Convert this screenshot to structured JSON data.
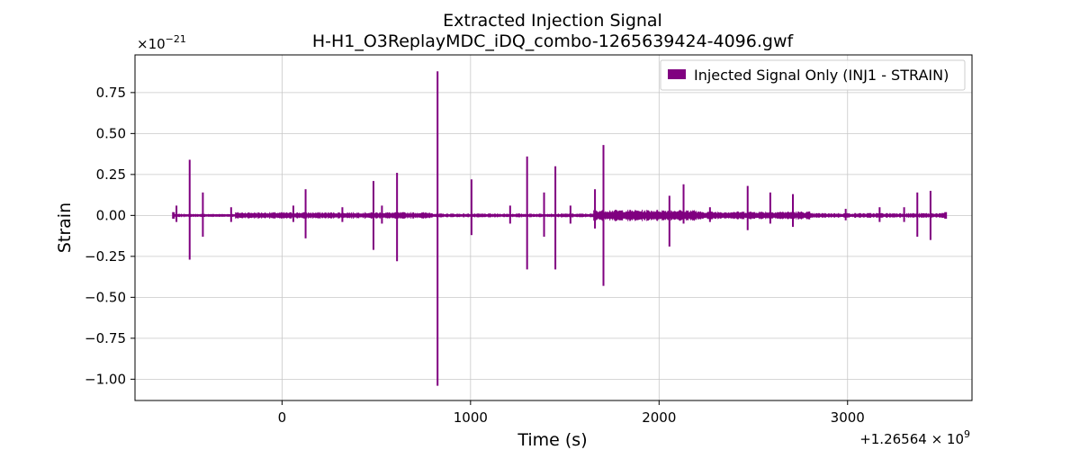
{
  "chart_data": {
    "type": "line",
    "title": "Extracted Injection Signal",
    "subtitle": "H-H1_O3ReplayMDC_iDQ_combo-1265639424-4096.gwf",
    "xlabel": "Time (s)",
    "ylabel": "Strain",
    "x_offset_label": "+1.26564",
    "x_offset_exp": "9",
    "y_scale_label": "×10",
    "y_scale_exp": "−21",
    "xlim": [
      -780,
      3660
    ],
    "ylim": [
      -1.13,
      0.98
    ],
    "xticks": [
      0,
      1000,
      2000,
      3000
    ],
    "xtick_labels": [
      "0",
      "1000",
      "2000",
      "3000"
    ],
    "yticks": [
      0.75,
      0.5,
      0.25,
      0.0,
      -0.25,
      -0.5,
      -0.75,
      -1.0
    ],
    "ytick_labels": [
      "0.75",
      "0.50",
      "0.25",
      "0.00",
      "−0.25",
      "−0.50",
      "−0.75",
      "−1.00"
    ],
    "grid": true,
    "legend_position": "top-right",
    "series": [
      {
        "name": "Injected Signal Only (INJ1 - STRAIN)",
        "color": "#800080",
        "x_range": [
          -576,
          3520
        ],
        "noise_segments": [
          {
            "x": [
              -576,
              -250
            ],
            "amp": 0.01
          },
          {
            "x": [
              -250,
              800
            ],
            "amp": 0.02
          },
          {
            "x": [
              800,
              1650
            ],
            "amp": 0.012
          },
          {
            "x": [
              1650,
              2200
            ],
            "amp": 0.035
          },
          {
            "x": [
              2200,
              2800
            ],
            "amp": 0.025
          },
          {
            "x": [
              2800,
              3520
            ],
            "amp": 0.015
          }
        ],
        "spikes": [
          {
            "t": -560,
            "max": 0.06,
            "min": -0.04
          },
          {
            "t": -490,
            "max": 0.34,
            "min": -0.27
          },
          {
            "t": -420,
            "max": 0.14,
            "min": -0.13
          },
          {
            "t": -270,
            "max": 0.05,
            "min": -0.04
          },
          {
            "t": 60,
            "max": 0.06,
            "min": -0.04
          },
          {
            "t": 125,
            "max": 0.16,
            "min": -0.14
          },
          {
            "t": 320,
            "max": 0.05,
            "min": -0.04
          },
          {
            "t": 485,
            "max": 0.21,
            "min": -0.21
          },
          {
            "t": 530,
            "max": 0.06,
            "min": -0.05
          },
          {
            "t": 610,
            "max": 0.26,
            "min": -0.28
          },
          {
            "t": 825,
            "max": 0.88,
            "min": -1.04
          },
          {
            "t": 1005,
            "max": 0.22,
            "min": -0.12
          },
          {
            "t": 1210,
            "max": 0.06,
            "min": -0.05
          },
          {
            "t": 1300,
            "max": 0.36,
            "min": -0.33
          },
          {
            "t": 1390,
            "max": 0.14,
            "min": -0.13
          },
          {
            "t": 1450,
            "max": 0.3,
            "min": -0.33
          },
          {
            "t": 1530,
            "max": 0.06,
            "min": -0.05
          },
          {
            "t": 1660,
            "max": 0.16,
            "min": -0.08
          },
          {
            "t": 1705,
            "max": 0.43,
            "min": -0.43
          },
          {
            "t": 2055,
            "max": 0.12,
            "min": -0.19
          },
          {
            "t": 2130,
            "max": 0.19,
            "min": -0.05
          },
          {
            "t": 2270,
            "max": 0.05,
            "min": -0.04
          },
          {
            "t": 2470,
            "max": 0.18,
            "min": -0.09
          },
          {
            "t": 2590,
            "max": 0.14,
            "min": -0.05
          },
          {
            "t": 2710,
            "max": 0.13,
            "min": -0.07
          },
          {
            "t": 2990,
            "max": 0.04,
            "min": -0.03
          },
          {
            "t": 3170,
            "max": 0.05,
            "min": -0.04
          },
          {
            "t": 3300,
            "max": 0.05,
            "min": -0.04
          },
          {
            "t": 3370,
            "max": 0.14,
            "min": -0.13
          },
          {
            "t": 3440,
            "max": 0.15,
            "min": -0.15
          }
        ]
      }
    ]
  }
}
